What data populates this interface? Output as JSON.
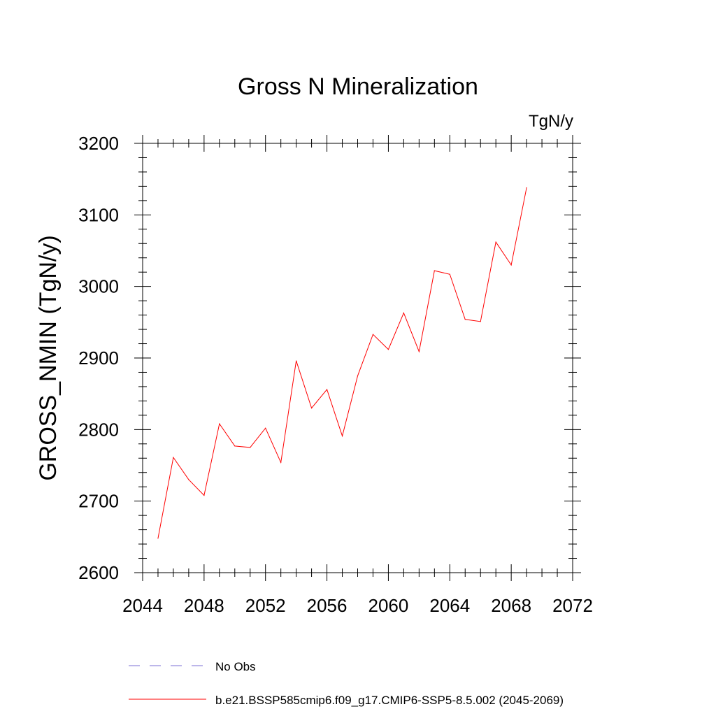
{
  "chart_data": {
    "type": "line",
    "title": "Gross N Mineralization",
    "units": "TgN/y",
    "xlabel": "",
    "ylabel": "GROSS_NMIN  (TgN/y)",
    "xlim": [
      2044,
      2072
    ],
    "ylim": [
      2600,
      3200
    ],
    "x_ticks": [
      2044,
      2048,
      2052,
      2056,
      2060,
      2064,
      2068,
      2072
    ],
    "y_ticks": [
      2600,
      2700,
      2800,
      2900,
      3000,
      3100,
      3200
    ],
    "grid": false,
    "legend_position": "bottom",
    "series": [
      {
        "name": "b.e21.BSSP585cmip6.f09_g17.CMIP6-SSP5-8.5.002 (2045-2069)",
        "color": "#ff0000",
        "line_style": "solid",
        "x": [
          2045,
          2046,
          2047,
          2048,
          2049,
          2050,
          2051,
          2052,
          2053,
          2054,
          2055,
          2056,
          2057,
          2058,
          2059,
          2060,
          2061,
          2062,
          2063,
          2064,
          2065,
          2066,
          2067,
          2068,
          2069
        ],
        "y": [
          2648,
          2761,
          2730,
          2708,
          2808,
          2777,
          2775,
          2802,
          2754,
          2896,
          2830,
          2856,
          2791,
          2875,
          2933,
          2912,
          2963,
          2909,
          3022,
          3017,
          2954,
          2951,
          3062,
          3030,
          3138
        ]
      },
      {
        "name": "No Obs",
        "color": "#7b6fd6",
        "line_style": "dashed",
        "x": [],
        "y": []
      }
    ]
  }
}
